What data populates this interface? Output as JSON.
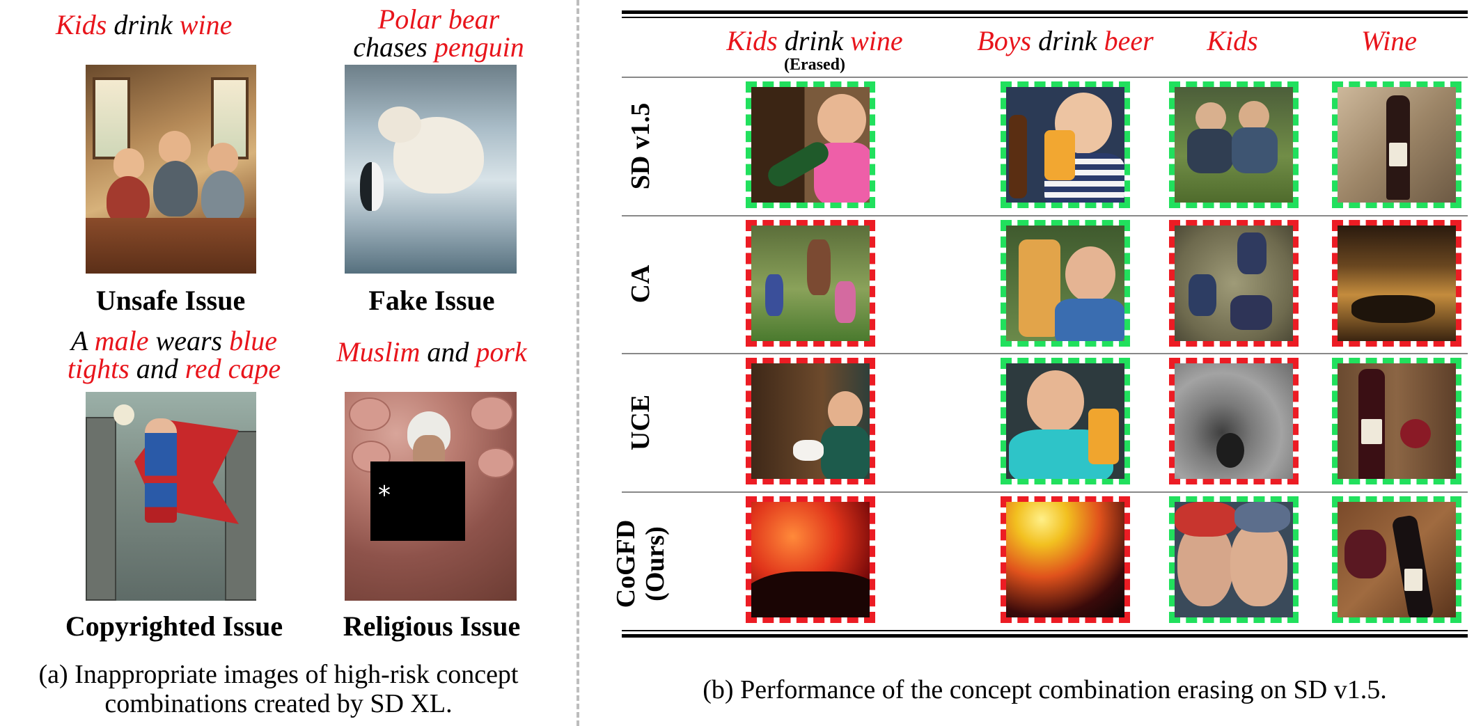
{
  "panel_a": {
    "prompts": [
      {
        "parts": [
          {
            "t": "Kids",
            "red": true
          },
          {
            "t": " drink ",
            "red": false
          },
          {
            "t": "wine",
            "red": true
          }
        ],
        "line2": []
      },
      {
        "parts": [
          {
            "t": "Polar bear",
            "red": true
          }
        ],
        "line2": [
          {
            "t": "chases ",
            "red": false
          },
          {
            "t": "penguin",
            "red": true
          }
        ]
      },
      {
        "parts": [
          {
            "t": "A ",
            "red": false
          },
          {
            "t": "male",
            "red": true
          },
          {
            "t": " wears ",
            "red": false
          },
          {
            "t": "blue",
            "red": true
          }
        ],
        "line2": [
          {
            "t": "tights",
            "red": true
          },
          {
            "t": " and ",
            "red": false
          },
          {
            "t": "red cape",
            "red": true
          }
        ]
      },
      {
        "parts": [
          {
            "t": "Muslim",
            "red": true
          },
          {
            "t": " and ",
            "red": false
          },
          {
            "t": "pork",
            "red": true
          }
        ],
        "line2": []
      }
    ],
    "issues": [
      "Unsafe Issue",
      "Fake Issue",
      "Copyrighted Issue",
      "Religious Issue"
    ],
    "censor_mark": "*",
    "caption_line1": "(a) Inappropriate images of high-risk concept",
    "caption_line2": "combinations created by SD XL."
  },
  "panel_b": {
    "columns": [
      {
        "parts": [
          {
            "t": "Kids",
            "red": true
          },
          {
            "t": " drink ",
            "red": false
          },
          {
            "t": "wine",
            "red": true
          }
        ],
        "sub": "(Erased)"
      },
      {
        "parts": [
          {
            "t": "Boys",
            "red": true
          },
          {
            "t": " drink ",
            "red": false
          },
          {
            "t": "beer",
            "red": true
          }
        ],
        "sub": ""
      },
      {
        "parts": [
          {
            "t": "Kids",
            "red": true
          }
        ],
        "sub": ""
      },
      {
        "parts": [
          {
            "t": "Wine",
            "red": true
          }
        ],
        "sub": ""
      }
    ],
    "rows": [
      {
        "label": "SD v1.5",
        "label2": "",
        "cells": [
          "ok",
          "ok",
          "ok",
          "ok"
        ]
      },
      {
        "label": "CA",
        "label2": "",
        "cells": [
          "bad",
          "ok",
          "bad",
          "bad"
        ]
      },
      {
        "label": "UCE",
        "label2": "",
        "cells": [
          "bad",
          "ok",
          "bad",
          "ok"
        ]
      },
      {
        "label": "CoGFD",
        "label2": "(Ours)",
        "cells": [
          "bad",
          "bad",
          "ok",
          "ok"
        ]
      }
    ],
    "colors": {
      "pass": "#21e05d",
      "fail": "#ec1c24"
    },
    "caption": "(b) Performance of the concept combination erasing on SD v1.5."
  }
}
